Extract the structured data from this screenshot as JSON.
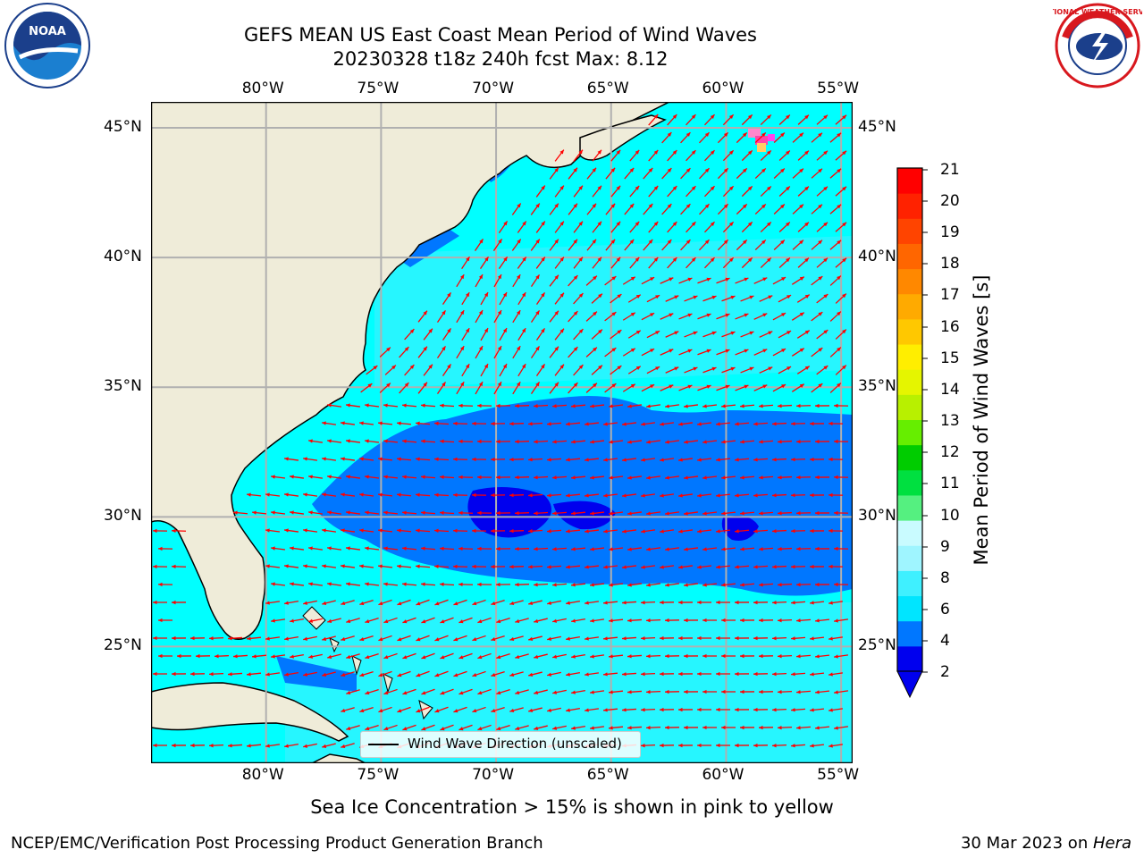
{
  "title": {
    "line1": "GEFS MEAN US East Coast Mean Period of Wind Waves",
    "line2": "20230328 t18z 240h fcst   Max: 8.12"
  },
  "logos": {
    "left": {
      "name": "noaa-logo",
      "text": "NOAA"
    },
    "right": {
      "name": "nws-logo",
      "text": "NATIONAL WEATHER SERVICE"
    }
  },
  "map": {
    "lon_range": [
      -85,
      -54.5
    ],
    "lat_range": [
      20.5,
      46
    ],
    "lon_ticks": [
      "80°W",
      "75°W",
      "70°W",
      "65°W",
      "60°W",
      "55°W"
    ],
    "lat_ticks": [
      "45°N",
      "40°N",
      "35°N",
      "30°N",
      "25°N"
    ],
    "grid": true,
    "legend": {
      "label": "Wind Wave Direction (unscaled)",
      "position": "bottom-center"
    }
  },
  "colorbar": {
    "label": "Mean Period of Wind Waves [s]",
    "ticks": [
      "21",
      "20",
      "19",
      "18",
      "17",
      "16",
      "15",
      "14",
      "13",
      "12",
      "11",
      "10",
      "9",
      "8",
      "6",
      "4",
      "2"
    ],
    "colors": [
      "#0000ee",
      "#0077ff",
      "#00e5ff",
      "#3ff0ff",
      "#9ff5ff",
      "#c9fbff",
      "#55f080",
      "#00e040",
      "#00cc00",
      "#66ee00",
      "#b8f000",
      "#e5f500",
      "#ffee00",
      "#ffc800",
      "#ffaa00",
      "#ff8800",
      "#ff6600",
      "#ff4400",
      "#ff2200",
      "#ff0000"
    ]
  },
  "note": "Sea Ice Concentration > 15% is shown in pink to yellow",
  "footer": {
    "left": "NCEP/EMC/Verification Post Processing Product Generation Branch",
    "right_date": "30 Mar 2023 on ",
    "right_machine": "Hera"
  },
  "colors": {
    "land": "#efecd9",
    "ocean_light": "#00ffff",
    "ocean_mid": "#3ff0ff",
    "band": "#0077ff",
    "core": "#0000ee",
    "arrow": "#ff0000",
    "grid": "#b0b0b0"
  }
}
